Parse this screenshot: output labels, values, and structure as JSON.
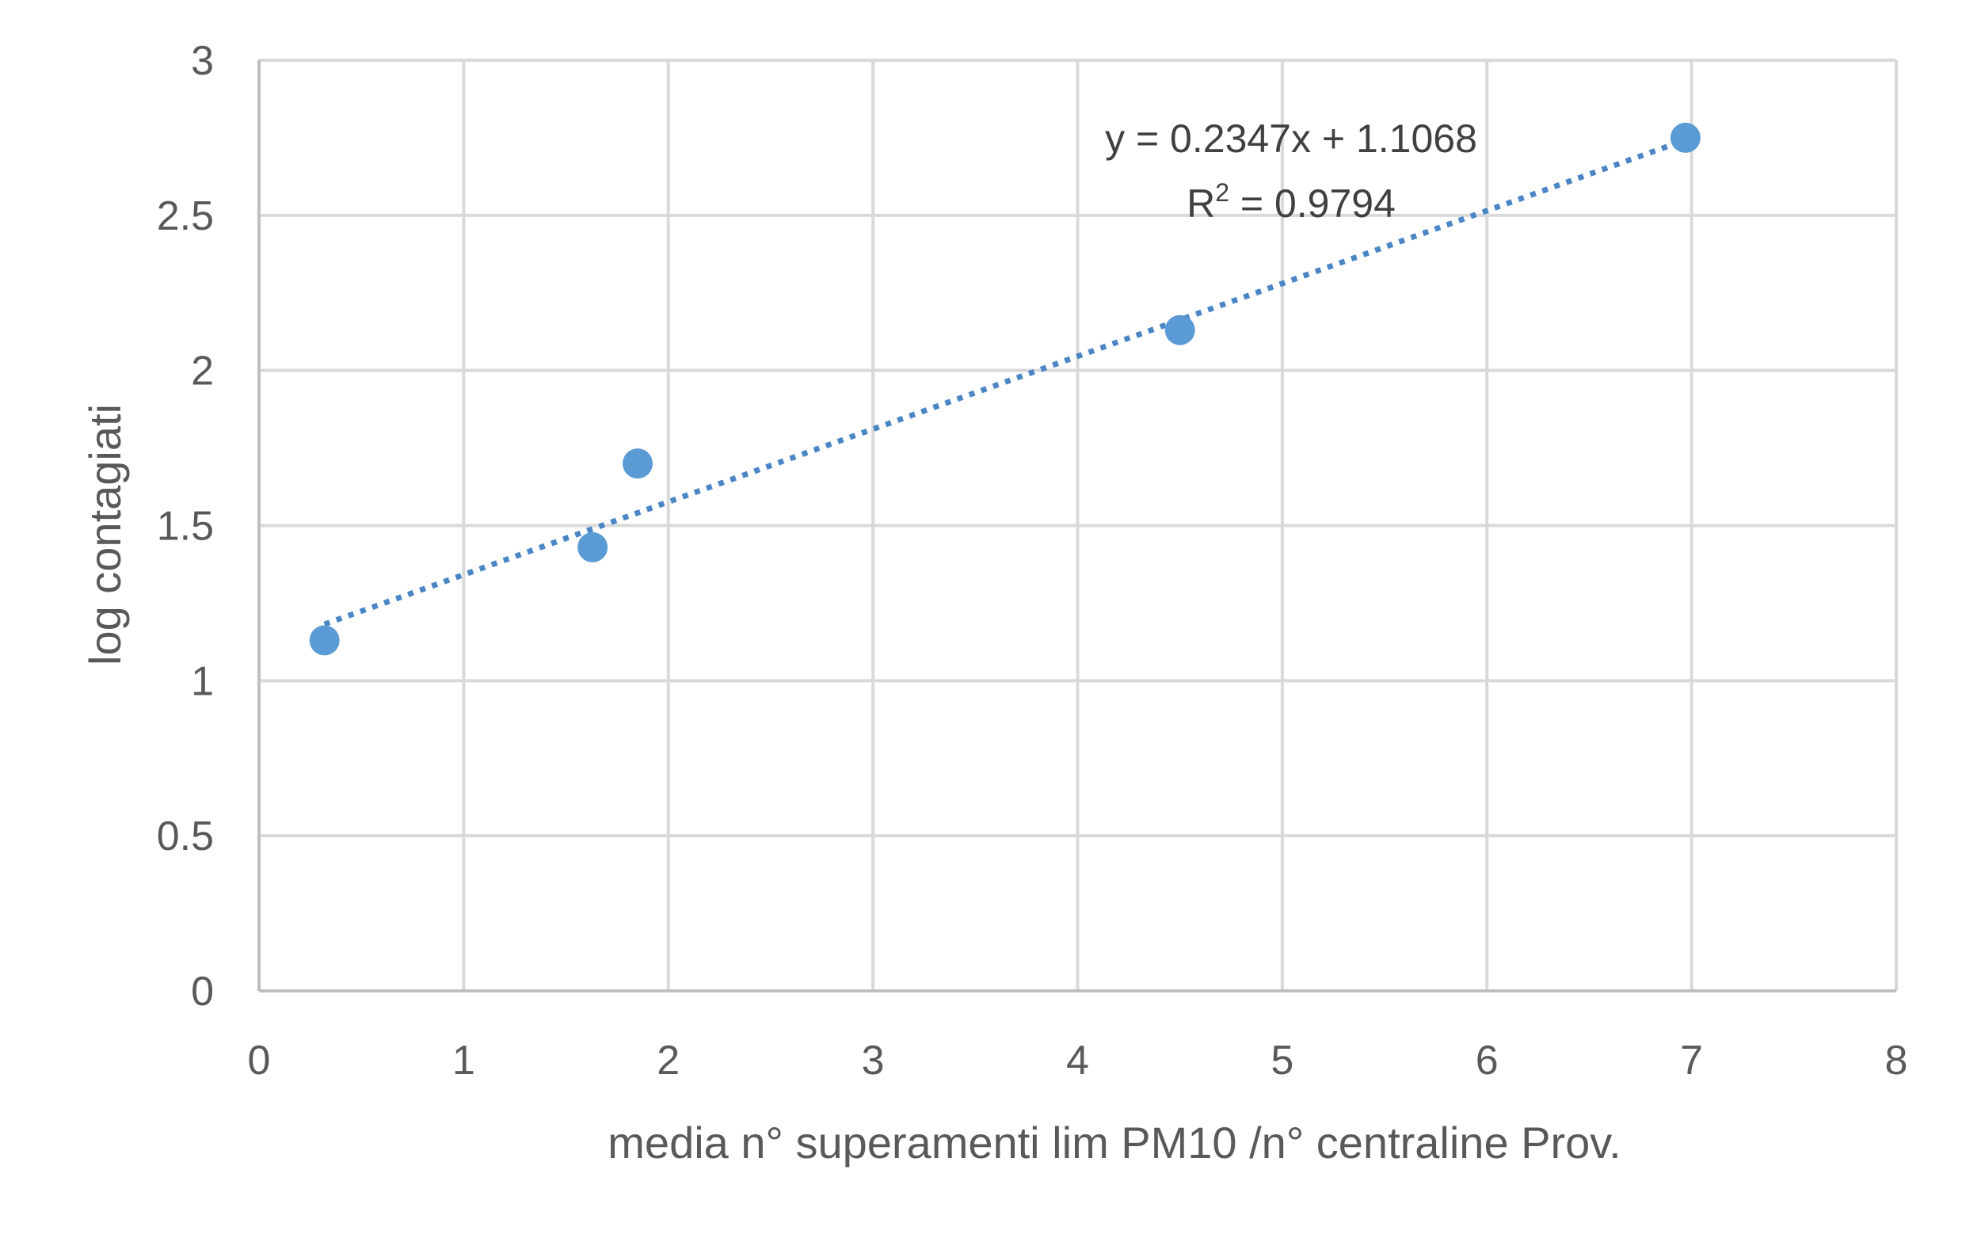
{
  "chart_data": {
    "type": "scatter",
    "title": "",
    "xlabel": "media n° superamenti lim PM10 /n° centraline Prov.",
    "ylabel": "log contagiati",
    "xlim": [
      0,
      8
    ],
    "ylim": [
      0,
      3
    ],
    "x_ticks": [
      "0",
      "1",
      "2",
      "3",
      "4",
      "5",
      "6",
      "7",
      "8"
    ],
    "y_ticks": [
      "0",
      "0.5",
      "1",
      "1.5",
      "2",
      "2.5",
      "3"
    ],
    "grid": true,
    "legend": "none",
    "series": [
      {
        "x": [
          0.32,
          1.63,
          1.85,
          4.5,
          6.97
        ],
        "y": [
          1.13,
          1.43,
          1.7,
          2.13,
          2.75
        ],
        "color": "#5b9bd5",
        "marker": "circle"
      }
    ],
    "trendline": {
      "type": "linear",
      "slope": 0.2347,
      "intercept": 1.1068,
      "x_range": [
        0.32,
        6.97
      ],
      "style": "dotted",
      "color": "#4a86c5",
      "equation": "y = 0.2347x + 1.1068",
      "r2_prefix": "R",
      "r2_sup": "2",
      "r2_value": " = 0.9794"
    },
    "colors": {
      "grid": "#d9d9d9",
      "axis": "#bfbfbf",
      "text": "#595959"
    }
  }
}
